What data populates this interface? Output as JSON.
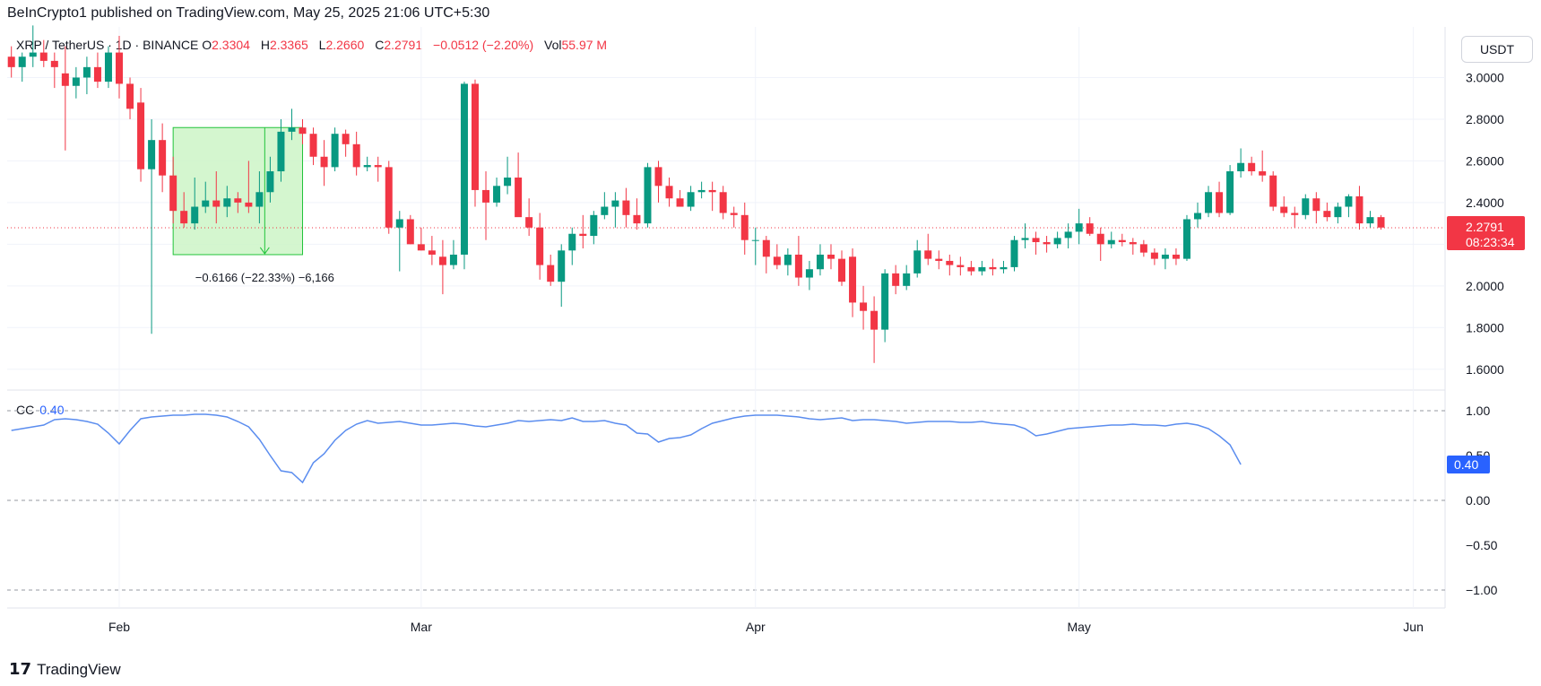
{
  "header": {
    "publisher": "BeInCrypto1 published on TradingView.com, May 25, 2025 21:06 UTC+5:30"
  },
  "legend": {
    "symbol": "XRP / TetherUS · 1D · BINANCE",
    "o_label": "O",
    "o": "2.3304",
    "h_label": "H",
    "h": "2.3365",
    "l_label": "L",
    "l": "2.2660",
    "c_label": "C",
    "c": "2.2791",
    "change": "−0.0512 (−2.20%)",
    "vol_label": "Vol",
    "vol": "55.97 M"
  },
  "unit": "USDT",
  "price_badge": {
    "value": "2.2791",
    "countdown": "08:23:34"
  },
  "measure_label": "−0.6166 (−22.33%) −6,166",
  "cc": {
    "label": "CC",
    "value": "0.40",
    "badge": "0.40"
  },
  "footer": {
    "brand": "TradingView"
  },
  "colors": {
    "up": "#089981",
    "down": "#f23645",
    "cc_line": "#5b8def",
    "measure_fill": "#ccf5c7",
    "measure_stroke": "#22c43a"
  },
  "chart_data": {
    "type": "candlestick",
    "price_axis": {
      "ticks": [
        "3.0000",
        "2.8000",
        "2.6000",
        "2.4000",
        "2.2000",
        "2.0000",
        "1.8000",
        "1.6000"
      ],
      "range": [
        1.5,
        3.2
      ]
    },
    "cc_axis": {
      "ticks": [
        "1.00",
        "0.50",
        "0.00",
        "−0.50",
        "−1.00"
      ],
      "range": [
        -1.1,
        1.1
      ]
    },
    "x_ticks": [
      {
        "label": "Feb",
        "day": 0
      },
      {
        "label": "Mar",
        "day": 28
      },
      {
        "label": "Apr",
        "day": 59
      },
      {
        "label": "May",
        "day": 89
      },
      {
        "label": "Jun",
        "day": 120
      }
    ],
    "first_day": -10,
    "candles": [
      [
        3.1,
        3.15,
        3.0,
        3.05
      ],
      [
        3.05,
        3.12,
        2.98,
        3.1
      ],
      [
        3.1,
        3.25,
        3.05,
        3.12
      ],
      [
        3.12,
        3.18,
        3.05,
        3.08
      ],
      [
        3.08,
        3.12,
        2.95,
        3.05
      ],
      [
        3.02,
        3.15,
        2.65,
        2.96
      ],
      [
        2.96,
        3.05,
        2.9,
        3.0
      ],
      [
        3.0,
        3.1,
        2.92,
        3.05
      ],
      [
        3.05,
        3.12,
        2.95,
        2.98
      ],
      [
        2.98,
        3.15,
        2.95,
        3.12
      ],
      [
        3.12,
        3.2,
        2.9,
        2.97
      ],
      [
        2.97,
        3.0,
        2.8,
        2.85
      ],
      [
        2.88,
        2.95,
        2.5,
        2.56
      ],
      [
        2.56,
        2.8,
        1.77,
        2.7
      ],
      [
        2.7,
        2.78,
        2.45,
        2.53
      ],
      [
        2.53,
        2.62,
        2.3,
        2.36
      ],
      [
        2.36,
        2.45,
        2.28,
        2.3
      ],
      [
        2.3,
        2.52,
        2.27,
        2.38
      ],
      [
        2.38,
        2.5,
        2.35,
        2.41
      ],
      [
        2.41,
        2.55,
        2.3,
        2.38
      ],
      [
        2.38,
        2.48,
        2.33,
        2.42
      ],
      [
        2.42,
        2.45,
        2.35,
        2.4
      ],
      [
        2.4,
        2.6,
        2.35,
        2.38
      ],
      [
        2.38,
        2.55,
        2.3,
        2.45
      ],
      [
        2.45,
        2.62,
        2.4,
        2.55
      ],
      [
        2.55,
        2.8,
        2.5,
        2.74
      ],
      [
        2.74,
        2.85,
        2.7,
        2.76
      ],
      [
        2.76,
        2.8,
        2.68,
        2.73
      ],
      [
        2.73,
        2.76,
        2.58,
        2.62
      ],
      [
        2.62,
        2.7,
        2.48,
        2.57
      ],
      [
        2.57,
        2.76,
        2.55,
        2.73
      ],
      [
        2.73,
        2.75,
        2.62,
        2.68
      ],
      [
        2.68,
        2.74,
        2.53,
        2.57
      ],
      [
        2.57,
        2.62,
        2.55,
        2.58
      ],
      [
        2.58,
        2.62,
        2.5,
        2.57
      ],
      [
        2.57,
        2.6,
        2.25,
        2.28
      ],
      [
        2.28,
        2.36,
        2.07,
        2.32
      ],
      [
        2.32,
        2.34,
        2.2,
        2.2
      ],
      [
        2.2,
        2.28,
        2.17,
        2.17
      ],
      [
        2.17,
        2.24,
        2.1,
        2.15
      ],
      [
        2.14,
        2.22,
        1.96,
        2.1
      ],
      [
        2.1,
        2.22,
        2.08,
        2.15
      ],
      [
        2.15,
        2.98,
        2.08,
        2.97
      ],
      [
        2.97,
        2.99,
        2.38,
        2.46
      ],
      [
        2.46,
        2.55,
        2.22,
        2.4
      ],
      [
        2.4,
        2.52,
        2.38,
        2.48
      ],
      [
        2.48,
        2.62,
        2.44,
        2.52
      ],
      [
        2.52,
        2.64,
        2.34,
        2.33
      ],
      [
        2.33,
        2.42,
        2.24,
        2.28
      ],
      [
        2.28,
        2.35,
        2.03,
        2.1
      ],
      [
        2.1,
        2.15,
        2.0,
        2.02
      ],
      [
        2.02,
        2.2,
        1.9,
        2.17
      ],
      [
        2.17,
        2.28,
        2.1,
        2.25
      ],
      [
        2.25,
        2.34,
        2.18,
        2.24
      ],
      [
        2.24,
        2.36,
        2.2,
        2.34
      ],
      [
        2.34,
        2.45,
        2.32,
        2.38
      ],
      [
        2.38,
        2.45,
        2.28,
        2.41
      ],
      [
        2.41,
        2.47,
        2.28,
        2.34
      ],
      [
        2.34,
        2.42,
        2.27,
        2.3
      ],
      [
        2.3,
        2.59,
        2.28,
        2.57
      ],
      [
        2.57,
        2.6,
        2.4,
        2.48
      ],
      [
        2.48,
        2.52,
        2.38,
        2.42
      ],
      [
        2.42,
        2.46,
        2.38,
        2.38
      ],
      [
        2.38,
        2.48,
        2.36,
        2.45
      ],
      [
        2.45,
        2.5,
        2.42,
        2.46
      ],
      [
        2.46,
        2.5,
        2.36,
        2.45
      ],
      [
        2.45,
        2.48,
        2.32,
        2.35
      ],
      [
        2.35,
        2.38,
        2.28,
        2.34
      ],
      [
        2.34,
        2.4,
        2.15,
        2.22
      ],
      [
        2.22,
        2.28,
        2.1,
        2.22
      ],
      [
        2.22,
        2.24,
        2.06,
        2.14
      ],
      [
        2.14,
        2.2,
        2.08,
        2.1
      ],
      [
        2.1,
        2.18,
        2.05,
        2.15
      ],
      [
        2.15,
        2.24,
        2.0,
        2.04
      ],
      [
        2.04,
        2.12,
        1.98,
        2.08
      ],
      [
        2.08,
        2.2,
        2.05,
        2.15
      ],
      [
        2.15,
        2.2,
        2.08,
        2.13
      ],
      [
        2.13,
        2.17,
        2.0,
        2.02
      ],
      [
        2.14,
        2.18,
        1.85,
        1.92
      ],
      [
        1.92,
        2.0,
        1.79,
        1.88
      ],
      [
        1.88,
        1.95,
        1.63,
        1.79
      ],
      [
        1.79,
        2.08,
        1.73,
        2.06
      ],
      [
        2.06,
        2.1,
        1.96,
        2.0
      ],
      [
        2.0,
        2.1,
        1.98,
        2.06
      ],
      [
        2.06,
        2.22,
        2.04,
        2.17
      ],
      [
        2.17,
        2.25,
        2.1,
        2.13
      ],
      [
        2.13,
        2.17,
        2.08,
        2.12
      ],
      [
        2.12,
        2.15,
        2.05,
        2.1
      ],
      [
        2.1,
        2.14,
        2.05,
        2.09
      ],
      [
        2.09,
        2.12,
        2.05,
        2.07
      ],
      [
        2.07,
        2.12,
        2.05,
        2.09
      ],
      [
        2.09,
        2.13,
        2.05,
        2.08
      ],
      [
        2.08,
        2.12,
        2.06,
        2.09
      ],
      [
        2.09,
        2.24,
        2.07,
        2.22
      ],
      [
        2.22,
        2.3,
        2.18,
        2.23
      ],
      [
        2.23,
        2.26,
        2.15,
        2.21
      ],
      [
        2.21,
        2.24,
        2.16,
        2.2
      ],
      [
        2.2,
        2.26,
        2.18,
        2.23
      ],
      [
        2.23,
        2.3,
        2.18,
        2.26
      ],
      [
        2.26,
        2.37,
        2.2,
        2.3
      ],
      [
        2.3,
        2.33,
        2.24,
        2.25
      ],
      [
        2.25,
        2.28,
        2.12,
        2.2
      ],
      [
        2.2,
        2.26,
        2.18,
        2.22
      ],
      [
        2.22,
        2.25,
        2.19,
        2.21
      ],
      [
        2.21,
        2.23,
        2.15,
        2.2
      ],
      [
        2.2,
        2.22,
        2.14,
        2.16
      ],
      [
        2.16,
        2.18,
        2.1,
        2.13
      ],
      [
        2.13,
        2.18,
        2.08,
        2.15
      ],
      [
        2.15,
        2.18,
        2.1,
        2.13
      ],
      [
        2.13,
        2.34,
        2.12,
        2.32
      ],
      [
        2.32,
        2.4,
        2.28,
        2.35
      ],
      [
        2.35,
        2.48,
        2.33,
        2.45
      ],
      [
        2.45,
        2.5,
        2.33,
        2.35
      ],
      [
        2.35,
        2.58,
        2.34,
        2.55
      ],
      [
        2.55,
        2.66,
        2.52,
        2.59
      ],
      [
        2.59,
        2.62,
        2.53,
        2.55
      ],
      [
        2.55,
        2.65,
        2.5,
        2.53
      ],
      [
        2.53,
        2.55,
        2.36,
        2.38
      ],
      [
        2.38,
        2.43,
        2.33,
        2.35
      ],
      [
        2.35,
        2.38,
        2.28,
        2.34
      ],
      [
        2.34,
        2.44,
        2.32,
        2.42
      ],
      [
        2.42,
        2.45,
        2.3,
        2.36
      ],
      [
        2.36,
        2.4,
        2.31,
        2.33
      ],
      [
        2.33,
        2.4,
        2.3,
        2.38
      ],
      [
        2.38,
        2.44,
        2.33,
        2.43
      ],
      [
        2.43,
        2.48,
        2.27,
        2.3
      ],
      [
        2.3,
        2.36,
        2.28,
        2.33
      ],
      [
        2.33,
        2.34,
        2.27,
        2.28
      ]
    ],
    "measure": {
      "from_day": 5,
      "to_day": 17,
      "top": 2.76,
      "bottom": 2.15,
      "change": -0.6166,
      "change_pct": -22.33
    },
    "last_price": 2.2791,
    "cc_values": [
      0.78,
      0.8,
      0.82,
      0.84,
      0.9,
      0.91,
      0.9,
      0.88,
      0.85,
      0.75,
      0.63,
      0.78,
      0.91,
      0.93,
      0.94,
      0.95,
      0.95,
      0.96,
      0.96,
      0.95,
      0.93,
      0.88,
      0.82,
      0.68,
      0.5,
      0.33,
      0.31,
      0.2,
      0.42,
      0.52,
      0.67,
      0.78,
      0.85,
      0.89,
      0.86,
      0.87,
      0.88,
      0.86,
      0.84,
      0.84,
      0.85,
      0.86,
      0.85,
      0.83,
      0.82,
      0.84,
      0.86,
      0.89,
      0.88,
      0.89,
      0.9,
      0.89,
      0.92,
      0.88,
      0.88,
      0.89,
      0.86,
      0.84,
      0.75,
      0.74,
      0.65,
      0.69,
      0.7,
      0.73,
      0.8,
      0.86,
      0.89,
      0.92,
      0.94,
      0.95,
      0.95,
      0.95,
      0.94,
      0.93,
      0.91,
      0.9,
      0.91,
      0.92,
      0.89,
      0.9,
      0.9,
      0.89,
      0.88,
      0.86,
      0.87,
      0.88,
      0.88,
      0.88,
      0.87,
      0.87,
      0.88,
      0.86,
      0.85,
      0.84,
      0.8,
      0.72,
      0.74,
      0.77,
      0.8,
      0.81,
      0.82,
      0.83,
      0.84,
      0.84,
      0.85,
      0.84,
      0.84,
      0.83,
      0.85,
      0.86,
      0.84,
      0.8,
      0.72,
      0.62,
      0.4
    ]
  }
}
